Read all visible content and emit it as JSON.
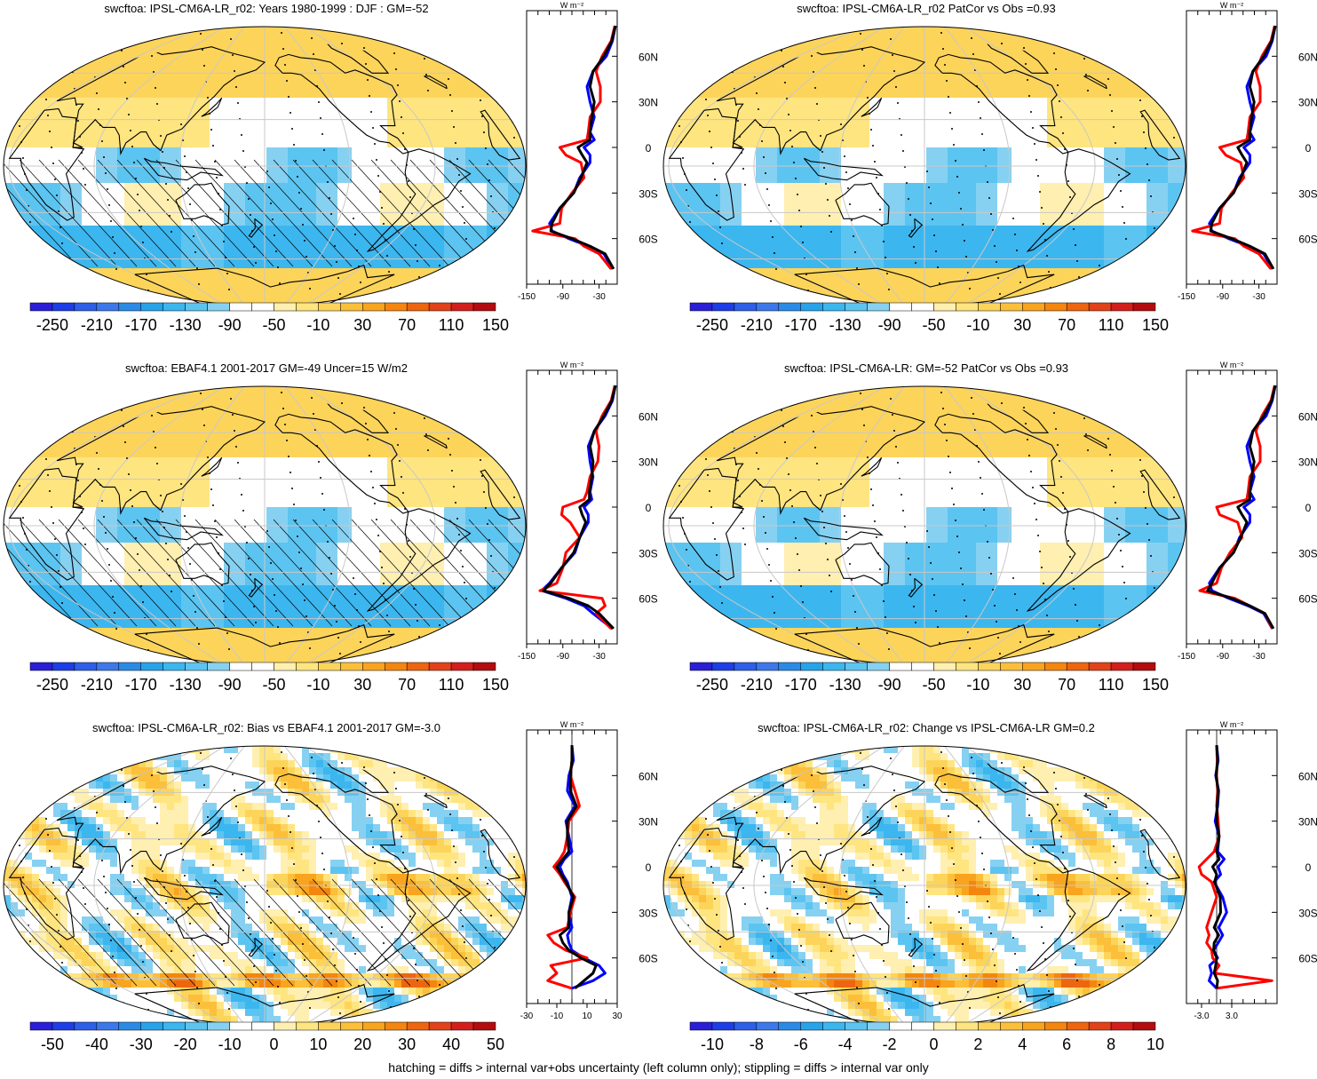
{
  "footnote": "hatching = diffs > internal var+obs uncertainty (left column only); stippling = diffs > internal var only",
  "units_label": "W m⁻²",
  "lat_ticks": [
    "60N",
    "30N",
    "0",
    "30S",
    "60S"
  ],
  "lat_values": [
    60,
    30,
    0,
    -30,
    -60
  ],
  "colors": {
    "land_outline": "#000000",
    "grid": "#c8c8c8",
    "line_model": "#0000ff",
    "line_obs": "#ff0000",
    "line_mean": "#000000",
    "ocean_neutral": "#ffffff"
  },
  "scale_colors": {
    "abs": [
      "#2a1fd6",
      "#1d3ee6",
      "#2d5fe8",
      "#3c78ea",
      "#2a8be6",
      "#27a3ea",
      "#3cb6ef",
      "#5cc4f0",
      "#86d1f2",
      "#ffffff",
      "#ffffff",
      "#ffefb0",
      "#ffe580",
      "#fdd45a",
      "#fbbf3a",
      "#f8a41f",
      "#f4860f",
      "#ee6510",
      "#e2421a",
      "#d31f1c",
      "#b30c10"
    ],
    "diff": [
      "#2a1fd6",
      "#1d3ee6",
      "#2d5fe8",
      "#3c78ea",
      "#2a8be6",
      "#27a3ea",
      "#3cb6ef",
      "#5cc4f0",
      "#86d1f2",
      "#ffffff",
      "#ffffff",
      "#ffefb0",
      "#ffe580",
      "#fdd45a",
      "#fbbf3a",
      "#f8a41f",
      "#f4860f",
      "#ee6510",
      "#e2421a",
      "#d31f1c",
      "#b30c10"
    ]
  },
  "chart_data": [
    {
      "type": "heatmap",
      "title": "swcftoa: IPSL-CM6A-LR_r02: Years 1980-1999 : DJF : GM=-52",
      "scale": "abs",
      "colorbar_labels": [
        "-250",
        "-210",
        "-170",
        "-130",
        "-90",
        "-50",
        "-10",
        "30",
        "70",
        "110",
        "150"
      ],
      "hatching": true,
      "stippling": true,
      "profile": {
        "xlim": [
          -150,
          0
        ],
        "x_ticks": [
          "-150",
          "-90",
          "-30"
        ],
        "x_tick_values": [
          -150,
          -90,
          -30
        ],
        "lat": [
          80,
          70,
          60,
          50,
          40,
          30,
          20,
          10,
          5,
          0,
          -5,
          -10,
          -20,
          -30,
          -40,
          -50,
          -55,
          -60,
          -65,
          -70,
          -80
        ],
        "series": [
          {
            "name": "model",
            "color": "line_model",
            "values": [
              -3,
              -8,
              -18,
              -40,
              -50,
              -45,
              -38,
              -45,
              -38,
              -55,
              -45,
              -45,
              -62,
              -72,
              -95,
              -112,
              -108,
              -80,
              -48,
              -22,
              -8
            ]
          },
          {
            "name": "obs",
            "color": "line_obs",
            "values": [
              -4,
              -10,
              -25,
              -35,
              -28,
              -28,
              -45,
              -48,
              -50,
              -95,
              -85,
              -60,
              -55,
              -75,
              -92,
              -95,
              -140,
              -70,
              -55,
              -30,
              -10
            ]
          },
          {
            "name": "mean",
            "color": "line_mean",
            "values": [
              -3,
              -9,
              -22,
              -40,
              -45,
              -38,
              -42,
              -45,
              -45,
              -65,
              -58,
              -50,
              -60,
              -72,
              -95,
              -108,
              -110,
              -75,
              -45,
              -20,
              -6
            ]
          }
        ]
      }
    },
    {
      "type": "heatmap",
      "title": "swcftoa: IPSL-CM6A-LR_r02 PatCor vs Obs =0.93",
      "scale": "abs",
      "colorbar_labels": [
        "-250",
        "-210",
        "-170",
        "-130",
        "-90",
        "-50",
        "-10",
        "30",
        "70",
        "110",
        "150"
      ],
      "hatching": false,
      "stippling": true,
      "profile": {
        "xlim": [
          -150,
          0
        ],
        "x_ticks": [
          "-150",
          "-90",
          "-30"
        ],
        "x_tick_values": [
          -150,
          -90,
          -30
        ],
        "lat": [
          80,
          70,
          60,
          50,
          40,
          30,
          20,
          10,
          5,
          0,
          -5,
          -10,
          -20,
          -30,
          -40,
          -50,
          -55,
          -60,
          -65,
          -70,
          -80
        ],
        "series": [
          {
            "name": "model",
            "color": "line_model",
            "values": [
              -3,
              -8,
              -18,
              -40,
              -50,
              -45,
              -38,
              -45,
              -38,
              -55,
              -45,
              -45,
              -62,
              -72,
              -95,
              -112,
              -108,
              -80,
              -48,
              -22,
              -8
            ]
          },
          {
            "name": "obs",
            "color": "line_obs",
            "values": [
              -4,
              -10,
              -25,
              -35,
              -28,
              -28,
              -45,
              -48,
              -50,
              -95,
              -85,
              -60,
              -55,
              -75,
              -92,
              -95,
              -140,
              -70,
              -55,
              -30,
              -10
            ]
          },
          {
            "name": "mean",
            "color": "line_mean",
            "values": [
              -3,
              -9,
              -22,
              -40,
              -45,
              -38,
              -42,
              -45,
              -45,
              -65,
              -58,
              -50,
              -60,
              -72,
              -95,
              -108,
              -110,
              -75,
              -45,
              -20,
              -6
            ]
          }
        ]
      }
    },
    {
      "type": "heatmap",
      "title": "swcftoa: EBAF4.1 2001-2017 GM=-49 Uncer=15 W/m2",
      "scale": "abs",
      "colorbar_labels": [
        "-250",
        "-210",
        "-170",
        "-130",
        "-90",
        "-50",
        "-10",
        "30",
        "70",
        "110",
        "150"
      ],
      "hatching": true,
      "stippling": true,
      "profile": {
        "xlim": [
          -150,
          0
        ],
        "x_ticks": [
          "-150",
          "-90",
          "-30"
        ],
        "x_tick_values": [
          -150,
          -90,
          -30
        ],
        "lat": [
          80,
          70,
          60,
          50,
          40,
          30,
          20,
          10,
          5,
          0,
          -5,
          -10,
          -20,
          -30,
          -40,
          -50,
          -55,
          -60,
          -65,
          -70,
          -80
        ],
        "series": [
          {
            "name": "model",
            "color": "line_model",
            "values": [
              -3,
              -8,
              -20,
              -38,
              -48,
              -45,
              -40,
              -45,
              -42,
              -55,
              -48,
              -48,
              -62,
              -70,
              -92,
              -112,
              -125,
              -85,
              -55,
              -40,
              -8
            ]
          },
          {
            "name": "obs",
            "color": "line_obs",
            "values": [
              -4,
              -10,
              -25,
              -35,
              -30,
              -32,
              -45,
              -50,
              -55,
              -90,
              -92,
              -78,
              -62,
              -85,
              -90,
              -100,
              -128,
              -25,
              -20,
              -35,
              -10
            ]
          },
          {
            "name": "mean",
            "color": "line_mean",
            "values": [
              -3,
              -9,
              -22,
              -38,
              -45,
              -40,
              -42,
              -46,
              -46,
              -62,
              -58,
              -52,
              -62,
              -72,
              -92,
              -110,
              -122,
              -80,
              -48,
              -30,
              -6
            ]
          }
        ]
      }
    },
    {
      "type": "heatmap",
      "title": "swcftoa: IPSL-CM6A-LR: GM=-52 PatCor vs Obs =0.93",
      "scale": "abs",
      "colorbar_labels": [
        "-250",
        "-210",
        "-170",
        "-130",
        "-90",
        "-50",
        "-10",
        "30",
        "70",
        "110",
        "150"
      ],
      "hatching": false,
      "stippling": true,
      "profile": {
        "xlim": [
          -150,
          0
        ],
        "x_ticks": [
          "-150",
          "-90",
          "-30"
        ],
        "x_tick_values": [
          -150,
          -90,
          -30
        ],
        "lat": [
          80,
          70,
          60,
          50,
          40,
          30,
          20,
          10,
          5,
          0,
          -5,
          -10,
          -20,
          -30,
          -40,
          -50,
          -55,
          -60,
          -65,
          -70,
          -80
        ],
        "series": [
          {
            "name": "model",
            "color": "line_model",
            "values": [
              -3,
              -8,
              -18,
              -40,
              -50,
              -45,
              -38,
              -45,
              -38,
              -55,
              -45,
              -45,
              -62,
              -72,
              -95,
              -112,
              -108,
              -80,
              -48,
              -22,
              -8
            ]
          },
          {
            "name": "obs",
            "color": "line_obs",
            "values": [
              -4,
              -10,
              -25,
              -35,
              -28,
              -28,
              -45,
              -48,
              -50,
              -100,
              -95,
              -65,
              -58,
              -78,
              -92,
              -100,
              -128,
              -70,
              -45,
              -20,
              -8
            ]
          },
          {
            "name": "mean",
            "color": "line_mean",
            "values": [
              -3,
              -9,
              -22,
              -40,
              -45,
              -38,
              -42,
              -45,
              -45,
              -65,
              -58,
              -50,
              -60,
              -72,
              -95,
              -108,
              -115,
              -75,
              -45,
              -20,
              -6
            ]
          }
        ]
      }
    },
    {
      "type": "heatmap",
      "title": "swcftoa: IPSL-CM6A-LR_r02: Bias vs EBAF4.1 2001-2017 GM=-3.0",
      "scale": "diff",
      "colorbar_labels": [
        "-50",
        "-40",
        "-30",
        "-20",
        "-10",
        "0",
        "10",
        "20",
        "30",
        "40",
        "50"
      ],
      "hatching": true,
      "stippling": true,
      "profile": {
        "xlim": [
          -30,
          30
        ],
        "x_ticks": [
          "-30",
          "-10",
          "10",
          "30"
        ],
        "x_tick_values": [
          -30,
          -10,
          10,
          30
        ],
        "lat": [
          80,
          70,
          60,
          50,
          40,
          30,
          20,
          10,
          5,
          0,
          -5,
          -10,
          -20,
          -30,
          -40,
          -45,
          -50,
          -55,
          -60,
          -65,
          -70,
          -75,
          -80
        ],
        "series": [
          {
            "name": "model",
            "color": "line_model",
            "values": [
              0,
              1,
              -2,
              -3,
              2,
              -4,
              -2,
              0,
              -5,
              -8,
              -6,
              -3,
              0,
              -2,
              0,
              -3,
              -2,
              0,
              8,
              18,
              22,
              14,
              0
            ]
          },
          {
            "name": "obs",
            "color": "line_obs",
            "values": [
              0,
              0,
              -1,
              2,
              5,
              -2,
              -3,
              -5,
              -8,
              -12,
              -8,
              -5,
              2,
              -1,
              -3,
              -16,
              -12,
              -4,
              10,
              -14,
              -10,
              -16,
              0
            ]
          },
          {
            "name": "mean",
            "color": "line_mean",
            "values": [
              0,
              0,
              -1,
              -1,
              3,
              -3,
              -3,
              -2,
              -6,
              -10,
              -7,
              -4,
              1,
              -2,
              -2,
              -8,
              -6,
              -2,
              6,
              16,
              14,
              8,
              2
            ]
          }
        ]
      }
    },
    {
      "type": "heatmap",
      "title": "swcftoa: IPSL-CM6A-LR_r02: Change vs IPSL-CM6A-LR GM=0.2",
      "scale": "diff",
      "colorbar_labels": [
        "-10",
        "-8",
        "-6",
        "-4",
        "-2",
        "0",
        "2",
        "4",
        "6",
        "8",
        "10"
      ],
      "hatching": false,
      "stippling": true,
      "profile": {
        "xlim": [
          -6,
          12
        ],
        "x_ticks": [
          "-3.0",
          "3.0"
        ],
        "x_tick_values": [
          -3,
          3
        ],
        "lat": [
          80,
          70,
          60,
          50,
          40,
          30,
          20,
          10,
          5,
          0,
          -5,
          -10,
          -20,
          -30,
          -40,
          -45,
          -50,
          -55,
          -60,
          -65,
          -70,
          -75,
          -80
        ],
        "series": [
          {
            "name": "model",
            "color": "line_model",
            "values": [
              0,
              0.3,
              -0.2,
              0.4,
              0.2,
              -0.3,
              0.5,
              0.2,
              1.5,
              0.3,
              0.8,
              -0.5,
              1.2,
              2.0,
              0.4,
              1.2,
              0.3,
              -0.6,
              0.2,
              -1.4,
              -1.0,
              -1.5,
              0
            ]
          },
          {
            "name": "obs",
            "color": "line_obs",
            "values": [
              0,
              0.1,
              0,
              0.2,
              0,
              0.3,
              0.5,
              -0.5,
              -2.0,
              -3.5,
              -3.0,
              -1.0,
              0,
              -1.0,
              -2.0,
              -1.5,
              -2.0,
              -1.0,
              -0.8,
              0.5,
              -0.5,
              11,
              0
            ]
          },
          {
            "name": "mean",
            "color": "line_mean",
            "values": [
              0,
              0.2,
              -0.1,
              0.3,
              0.1,
              0,
              0.5,
              0,
              0.5,
              -0.8,
              0,
              -0.4,
              0.7,
              0.8,
              -0.5,
              0.4,
              -0.5,
              -0.6,
              0,
              -0.2,
              -0.5,
              0.2,
              0
            ]
          }
        ]
      }
    }
  ]
}
